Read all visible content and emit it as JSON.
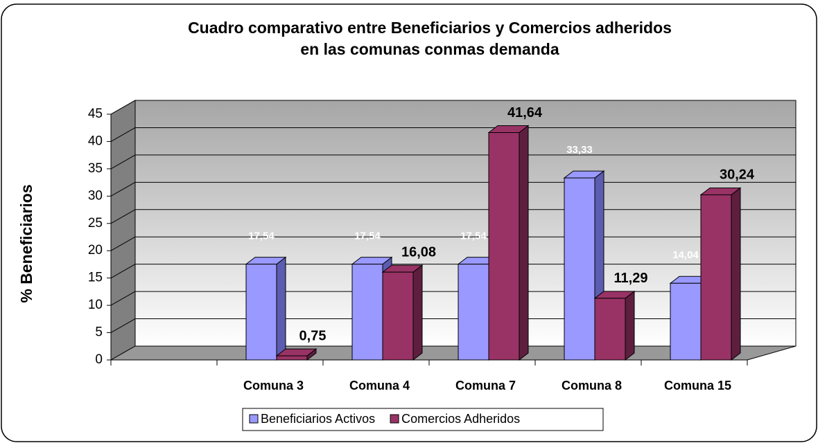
{
  "chart_data": {
    "type": "bar3d",
    "title": [
      "Cuadro comparativo entre Beneficiarios y Comercios adheridos",
      "en las comunas conmas demanda"
    ],
    "ylabel": "% Beneficiarios",
    "categories": [
      null,
      "Comuna 3",
      "Comuna 4",
      "Comuna 7",
      "Comuna 8",
      "Comuna 15"
    ],
    "series": [
      {
        "name": "Beneficiarios Activos",
        "color": "#9999ff",
        "side": "#5c5cb0",
        "values": [
          null,
          17.54,
          17.54,
          17.54,
          33.33,
          14.04
        ],
        "value_labels": [
          null,
          "17,54",
          "17,54",
          "17,54",
          "33,33",
          "14,04"
        ]
      },
      {
        "name": "Comercios Adheridos",
        "color": "#993366",
        "side": "#5e1f3e",
        "values": [
          null,
          0.75,
          16.08,
          41.64,
          11.29,
          30.24
        ],
        "value_labels": [
          null,
          "0,75",
          "16,08",
          "41,64",
          "11,29",
          "30,24"
        ]
      }
    ],
    "ylim": [
      0,
      45
    ],
    "yticks": [
      0,
      5,
      10,
      15,
      20,
      25,
      30,
      35,
      40,
      45
    ],
    "grid": true,
    "legend": "bottom"
  }
}
